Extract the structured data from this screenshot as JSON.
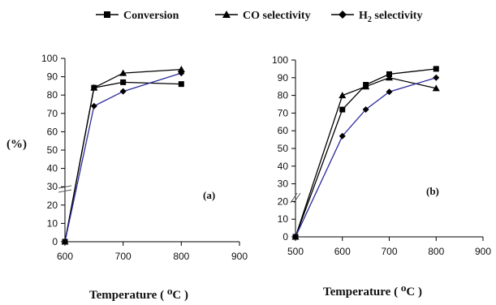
{
  "legend": {
    "items": [
      {
        "label": "Conversion",
        "marker": "square"
      },
      {
        "label": "CO selectivity",
        "marker": "triangle"
      },
      {
        "label": "H2 selectivity",
        "marker": "diamond"
      }
    ]
  },
  "ylabel": "(%)",
  "chart_data": [
    {
      "type": "line",
      "panel_label": "(a)",
      "xlabel": "Temperature ( ⁰C )",
      "xlim": [
        600,
        900
      ],
      "xticks": [
        600,
        700,
        800,
        900
      ],
      "ylim": [
        0,
        100
      ],
      "yticks": [
        0,
        10,
        20,
        30,
        40,
        50,
        60,
        70,
        80,
        90,
        100
      ],
      "legend_position": "top",
      "grid": false,
      "series": [
        {
          "name": "Conversion",
          "marker": "square",
          "color": "#000000",
          "points": [
            [
              600,
              0
            ],
            [
              650,
              84
            ],
            [
              700,
              87
            ],
            [
              800,
              86
            ]
          ]
        },
        {
          "name": "CO selectivity",
          "marker": "triangle",
          "color": "#000000",
          "points": [
            [
              600,
              0
            ],
            [
              650,
              84
            ],
            [
              700,
              92
            ],
            [
              800,
              94
            ]
          ]
        },
        {
          "name": "H2 selectivity",
          "marker": "diamond",
          "color": "#2a2a9a",
          "points": [
            [
              600,
              0
            ],
            [
              650,
              74
            ],
            [
              700,
              82
            ],
            [
              800,
              92
            ]
          ]
        }
      ]
    },
    {
      "type": "line",
      "panel_label": "(b)",
      "xlabel": "Temperature ( ⁰C )",
      "xlim": [
        500,
        900
      ],
      "xticks": [
        500,
        600,
        700,
        800,
        900
      ],
      "ylim": [
        0,
        100
      ],
      "yticks": [
        0,
        10,
        20,
        30,
        40,
        50,
        60,
        70,
        80,
        90,
        100
      ],
      "legend_position": "top",
      "grid": false,
      "series": [
        {
          "name": "Conversion",
          "marker": "square",
          "color": "#000000",
          "points": [
            [
              500,
              0
            ],
            [
              600,
              72
            ],
            [
              650,
              86
            ],
            [
              700,
              92
            ],
            [
              800,
              95
            ]
          ]
        },
        {
          "name": "CO selectivity",
          "marker": "triangle",
          "color": "#000000",
          "points": [
            [
              500,
              0
            ],
            [
              600,
              80
            ],
            [
              650,
              85
            ],
            [
              700,
              90
            ],
            [
              800,
              84
            ]
          ]
        },
        {
          "name": "H2 selectivity",
          "marker": "diamond",
          "color": "#2a2a9a",
          "points": [
            [
              500,
              0
            ],
            [
              600,
              57
            ],
            [
              650,
              72
            ],
            [
              700,
              82
            ],
            [
              800,
              90
            ]
          ]
        }
      ]
    }
  ]
}
